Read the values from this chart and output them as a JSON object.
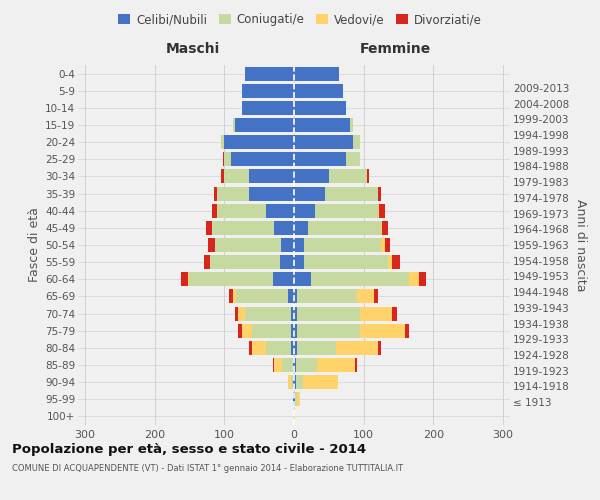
{
  "age_groups": [
    "100+",
    "95-99",
    "90-94",
    "85-89",
    "80-84",
    "75-79",
    "70-74",
    "65-69",
    "60-64",
    "55-59",
    "50-54",
    "45-49",
    "40-44",
    "35-39",
    "30-34",
    "25-29",
    "20-24",
    "15-19",
    "10-14",
    "5-9",
    "0-4"
  ],
  "birth_years": [
    "≤ 1913",
    "1914-1918",
    "1919-1923",
    "1924-1928",
    "1929-1933",
    "1934-1938",
    "1939-1943",
    "1944-1948",
    "1949-1953",
    "1954-1958",
    "1959-1963",
    "1964-1968",
    "1969-1973",
    "1974-1978",
    "1979-1983",
    "1984-1988",
    "1989-1993",
    "1994-1998",
    "1999-2003",
    "2004-2008",
    "2009-2013"
  ],
  "maschi": {
    "celibi": [
      0,
      1,
      1,
      2,
      5,
      5,
      5,
      8,
      30,
      20,
      18,
      28,
      40,
      65,
      65,
      90,
      100,
      85,
      75,
      75,
      70
    ],
    "coniugati": [
      0,
      0,
      3,
      15,
      35,
      55,
      65,
      75,
      120,
      100,
      95,
      90,
      70,
      45,
      35,
      10,
      5,
      2,
      0,
      0,
      0
    ],
    "vedovi": [
      0,
      0,
      5,
      12,
      20,
      15,
      10,
      5,
      2,
      1,
      0,
      0,
      0,
      0,
      0,
      0,
      0,
      0,
      0,
      0,
      0
    ],
    "divorziati": [
      0,
      0,
      0,
      1,
      5,
      5,
      5,
      5,
      10,
      8,
      10,
      8,
      8,
      5,
      5,
      2,
      0,
      0,
      0,
      0,
      0
    ]
  },
  "femmine": {
    "nubili": [
      0,
      2,
      3,
      3,
      5,
      5,
      5,
      5,
      25,
      15,
      15,
      20,
      30,
      45,
      50,
      75,
      85,
      80,
      75,
      70,
      65
    ],
    "coniugate": [
      0,
      2,
      10,
      30,
      55,
      90,
      90,
      85,
      140,
      120,
      110,
      105,
      90,
      75,
      55,
      20,
      10,
      5,
      0,
      0,
      0
    ],
    "vedove": [
      1,
      5,
      50,
      55,
      60,
      65,
      45,
      25,
      15,
      5,
      5,
      2,
      2,
      0,
      0,
      0,
      0,
      0,
      0,
      0,
      0
    ],
    "divorziate": [
      0,
      0,
      0,
      2,
      5,
      5,
      8,
      5,
      10,
      12,
      8,
      8,
      8,
      5,
      3,
      0,
      0,
      0,
      0,
      0,
      0
    ]
  },
  "colors": {
    "celibi": "#4472C4",
    "coniugati": "#C5D9A0",
    "vedovi": "#FFD26A",
    "divorziati": "#D9261C"
  },
  "xlim": 310,
  "title": "Popolazione per età, sesso e stato civile - 2014",
  "subtitle": "COMUNE DI ACQUAPENDENTE (VT) - Dati ISTAT 1° gennaio 2014 - Elaborazione TUTTITALIA.IT",
  "xlabel_left": "Maschi",
  "xlabel_right": "Femmine",
  "ylabel_left": "Fasce di età",
  "ylabel_right": "Anni di nascita",
  "bg_color": "#f0f0f0",
  "grid_color": "#cccccc"
}
